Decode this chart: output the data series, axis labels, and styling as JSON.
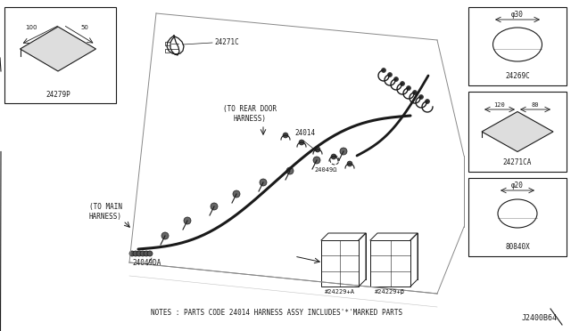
{
  "bg_color": "#ffffff",
  "line_color": "#1a1a1a",
  "diagram_code": "J2400B64",
  "notes": "NOTES : PARTS CODE 24014 HARNESS ASSY INCLUDES'*'MARKED PARTS",
  "label_24279P": "24279P",
  "label_24271C": "24271C",
  "label_24014": "24014",
  "label_24049I": "24049Ω",
  "label_24049DA": "24049DA",
  "label_to_rear": "(TO REAR DOOR\nHARNESS)",
  "label_to_main": "(TO MAIN\nHARNESS)",
  "label_24229A": "#24229+A",
  "label_24229B": "#24229+β",
  "label_24269C": "24269C",
  "dim_24269C": "φ30",
  "label_24271CA": "24271CA",
  "dim1_24271CA": "120",
  "dim2_24271CA": "80",
  "label_80840X": "80840X",
  "dim_80840X": "φ20",
  "dim1_24279P": "100",
  "dim2_24279P": "50"
}
